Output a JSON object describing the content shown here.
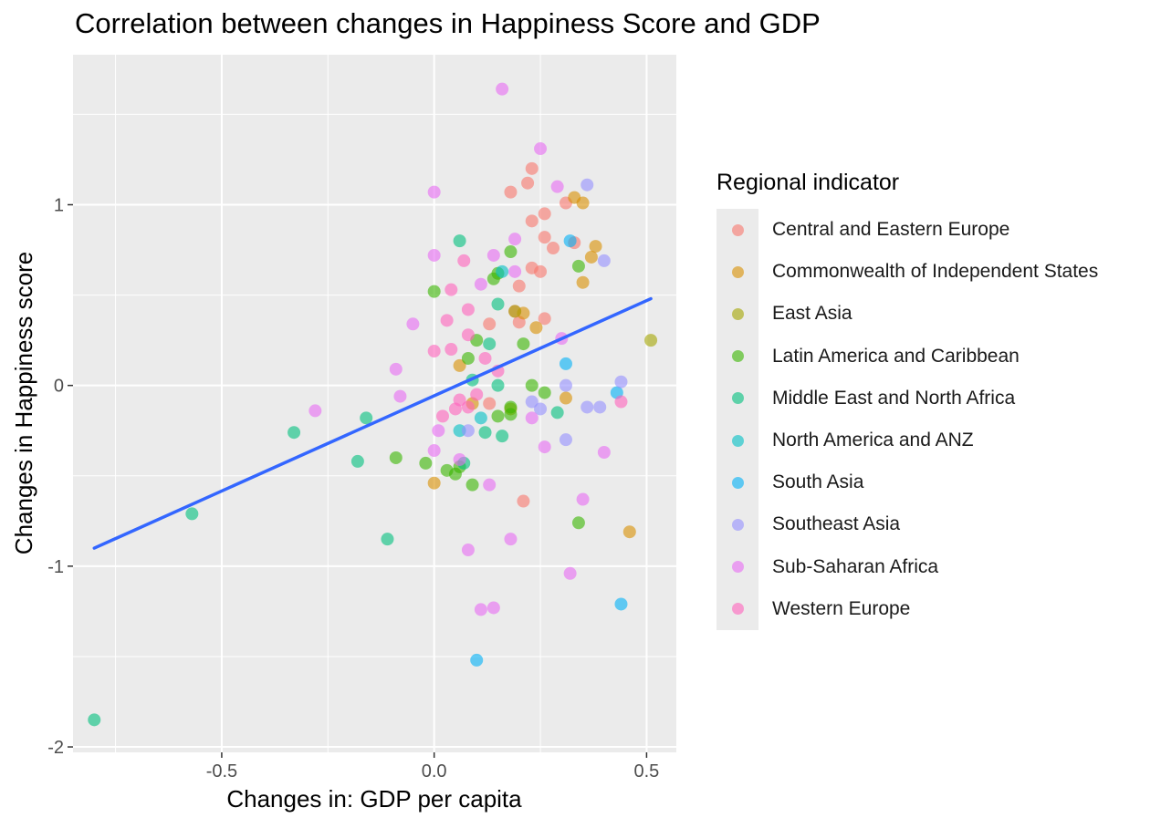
{
  "chart_data": {
    "type": "scatter",
    "title": "Correlation between changes in Happiness Score and GDP",
    "xlabel": "Changes in: GDP per capita",
    "ylabel": "Changes in Happiness score",
    "xlim": [
      -0.85,
      0.57
    ],
    "ylim": [
      -2.03,
      1.83
    ],
    "xticks": [
      -0.5,
      0.0,
      0.5
    ],
    "xtick_labels": [
      "-0.5",
      "0.0",
      "0.5"
    ],
    "yticks": [
      -2,
      -1,
      0,
      1
    ],
    "ytick_labels": [
      "-2",
      "-1",
      "0",
      "1"
    ],
    "grid": true,
    "legend": {
      "title": "Regional indicator",
      "placement": "right",
      "entries": [
        {
          "label": "Central and Eastern Europe",
          "color": "#F8766D"
        },
        {
          "label": "Commonwealth of Independent States",
          "color": "#D89000"
        },
        {
          "label": "East Asia",
          "color": "#A3A500"
        },
        {
          "label": "Latin America and Caribbean",
          "color": "#39B600"
        },
        {
          "label": "Middle East and North Africa",
          "color": "#00BF7D"
        },
        {
          "label": "North America and ANZ",
          "color": "#00BFC4"
        },
        {
          "label": "South Asia",
          "color": "#00B0F6"
        },
        {
          "label": "Southeast Asia",
          "color": "#9590FF"
        },
        {
          "label": "Sub-Saharan Africa",
          "color": "#E76BF3"
        },
        {
          "label": "Western Europe",
          "color": "#FF62BC"
        }
      ]
    },
    "trend_line": {
      "color": "#3366FF",
      "x": [
        -0.8,
        0.51
      ],
      "y": [
        -0.9,
        0.48
      ]
    },
    "series": [
      {
        "name": "Central and Eastern Europe",
        "color": "#F8766D",
        "points": [
          [
            0.18,
            1.07
          ],
          [
            0.23,
            1.2
          ],
          [
            0.22,
            1.12
          ],
          [
            0.31,
            1.01
          ],
          [
            0.23,
            0.91
          ],
          [
            0.26,
            0.95
          ],
          [
            0.26,
            0.82
          ],
          [
            0.28,
            0.76
          ],
          [
            0.33,
            0.79
          ],
          [
            0.23,
            0.65
          ],
          [
            0.2,
            0.55
          ],
          [
            0.25,
            0.63
          ],
          [
            0.19,
            0.41
          ],
          [
            0.2,
            0.35
          ],
          [
            0.26,
            0.37
          ],
          [
            0.13,
            0.34
          ],
          [
            0.21,
            -0.64
          ],
          [
            0.13,
            -0.1
          ]
        ]
      },
      {
        "name": "Commonwealth of Independent States",
        "color": "#D89000",
        "points": [
          [
            0.35,
            1.01
          ],
          [
            0.33,
            1.04
          ],
          [
            0.38,
            0.77
          ],
          [
            0.37,
            0.71
          ],
          [
            0.35,
            0.57
          ],
          [
            0.21,
            0.4
          ],
          [
            0.24,
            0.32
          ],
          [
            0.06,
            0.11
          ],
          [
            0.0,
            -0.54
          ],
          [
            0.46,
            -0.81
          ],
          [
            0.31,
            -0.07
          ],
          [
            0.09,
            -0.1
          ]
        ]
      },
      {
        "name": "East Asia",
        "color": "#A3A500",
        "points": [
          [
            0.51,
            0.25
          ],
          [
            0.19,
            0.41
          ],
          [
            0.18,
            -0.13
          ]
        ]
      },
      {
        "name": "Latin America and Caribbean",
        "color": "#39B600",
        "points": [
          [
            0.18,
            0.74
          ],
          [
            0.0,
            0.52
          ],
          [
            0.15,
            0.62
          ],
          [
            0.14,
            0.59
          ],
          [
            0.34,
            0.66
          ],
          [
            0.1,
            0.25
          ],
          [
            0.21,
            0.23
          ],
          [
            0.08,
            0.15
          ],
          [
            0.23,
            0.0
          ],
          [
            0.26,
            -0.04
          ],
          [
            0.18,
            -0.16
          ],
          [
            0.15,
            -0.17
          ],
          [
            0.18,
            -0.12
          ],
          [
            0.03,
            -0.47
          ],
          [
            -0.02,
            -0.43
          ],
          [
            -0.09,
            -0.4
          ],
          [
            0.06,
            -0.45
          ],
          [
            0.05,
            -0.49
          ],
          [
            0.09,
            -0.55
          ],
          [
            0.34,
            -0.76
          ]
        ]
      },
      {
        "name": "Middle East and North Africa",
        "color": "#00BF7D",
        "points": [
          [
            0.06,
            0.8
          ],
          [
            0.15,
            0.45
          ],
          [
            0.13,
            0.23
          ],
          [
            0.09,
            0.03
          ],
          [
            0.15,
            0.0
          ],
          [
            0.29,
            -0.15
          ],
          [
            0.12,
            -0.26
          ],
          [
            0.16,
            -0.28
          ],
          [
            -0.33,
            -0.26
          ],
          [
            -0.16,
            -0.18
          ],
          [
            -0.18,
            -0.42
          ],
          [
            -0.11,
            -0.85
          ],
          [
            -0.57,
            -0.71
          ],
          [
            -0.8,
            -1.85
          ],
          [
            0.07,
            -0.43
          ]
        ]
      },
      {
        "name": "North America and ANZ",
        "color": "#00BFC4",
        "points": [
          [
            0.11,
            -0.18
          ],
          [
            0.06,
            -0.25
          ],
          [
            0.16,
            0.63
          ]
        ]
      },
      {
        "name": "South Asia",
        "color": "#00B0F6",
        "points": [
          [
            0.32,
            0.8
          ],
          [
            0.31,
            0.12
          ],
          [
            0.43,
            -0.04
          ],
          [
            0.44,
            -1.21
          ],
          [
            0.1,
            -1.52
          ]
        ]
      },
      {
        "name": "Southeast Asia",
        "color": "#9590FF",
        "points": [
          [
            0.36,
            1.11
          ],
          [
            0.4,
            0.69
          ],
          [
            0.44,
            0.02
          ],
          [
            0.31,
            0.0
          ],
          [
            0.36,
            -0.12
          ],
          [
            0.39,
            -0.12
          ],
          [
            0.23,
            -0.09
          ],
          [
            0.25,
            -0.13
          ],
          [
            0.31,
            -0.3
          ],
          [
            0.08,
            -0.25
          ]
        ]
      },
      {
        "name": "Sub-Saharan Africa",
        "color": "#E76BF3",
        "points": [
          [
            0.16,
            1.64
          ],
          [
            0.25,
            1.31
          ],
          [
            0.29,
            1.1
          ],
          [
            0.0,
            1.07
          ],
          [
            0.0,
            0.72
          ],
          [
            0.19,
            0.81
          ],
          [
            0.14,
            0.72
          ],
          [
            0.19,
            0.63
          ],
          [
            0.11,
            0.56
          ],
          [
            -0.05,
            0.34
          ],
          [
            -0.09,
            0.09
          ],
          [
            -0.08,
            -0.06
          ],
          [
            -0.28,
            -0.14
          ],
          [
            0.0,
            -0.36
          ],
          [
            0.01,
            -0.25
          ],
          [
            0.06,
            -0.41
          ],
          [
            0.13,
            -0.55
          ],
          [
            0.18,
            -0.85
          ],
          [
            0.08,
            -0.91
          ],
          [
            0.11,
            -1.24
          ],
          [
            0.14,
            -1.23
          ],
          [
            0.32,
            -1.04
          ],
          [
            0.35,
            -0.63
          ],
          [
            0.26,
            -0.34
          ],
          [
            0.4,
            -0.37
          ],
          [
            0.3,
            0.26
          ],
          [
            0.23,
            -0.18
          ]
        ]
      },
      {
        "name": "Western Europe",
        "color": "#FF62BC",
        "points": [
          [
            0.04,
            0.53
          ],
          [
            0.07,
            0.69
          ],
          [
            0.08,
            0.42
          ],
          [
            0.03,
            0.36
          ],
          [
            0.0,
            0.19
          ],
          [
            0.04,
            0.2
          ],
          [
            0.08,
            0.28
          ],
          [
            0.12,
            0.15
          ],
          [
            0.06,
            -0.08
          ],
          [
            0.08,
            -0.12
          ],
          [
            0.1,
            -0.05
          ],
          [
            0.05,
            -0.13
          ],
          [
            0.44,
            -0.09
          ],
          [
            0.02,
            -0.17
          ],
          [
            0.15,
            0.08
          ]
        ]
      }
    ]
  }
}
